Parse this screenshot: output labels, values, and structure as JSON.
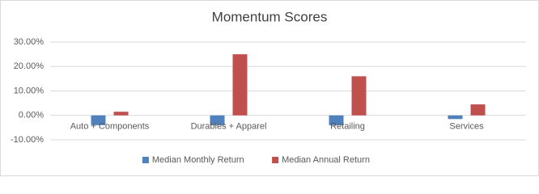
{
  "chart_data": {
    "type": "bar",
    "title": "Momentum Scores",
    "categories": [
      "Auto + Components",
      "Durables + Apparel",
      "Retailing",
      "Services"
    ],
    "series": [
      {
        "name": "Median Monthly Return",
        "color": "#4f81bd",
        "values": [
          -4,
          -4,
          -4,
          -1.5
        ]
      },
      {
        "name": "Median Annual Return",
        "color": "#c0504d",
        "values": [
          1.5,
          25,
          16,
          4.5
        ]
      }
    ],
    "ylim": [
      -10,
      30
    ],
    "yticks": [
      {
        "value": -10,
        "label": "-10.00%"
      },
      {
        "value": 0,
        "label": "0.00%"
      },
      {
        "value": 10,
        "label": "10.00%"
      },
      {
        "value": 20,
        "label": "20.00%"
      },
      {
        "value": 30,
        "label": "30.00%"
      }
    ],
    "grid": true,
    "legend": "bottom"
  }
}
